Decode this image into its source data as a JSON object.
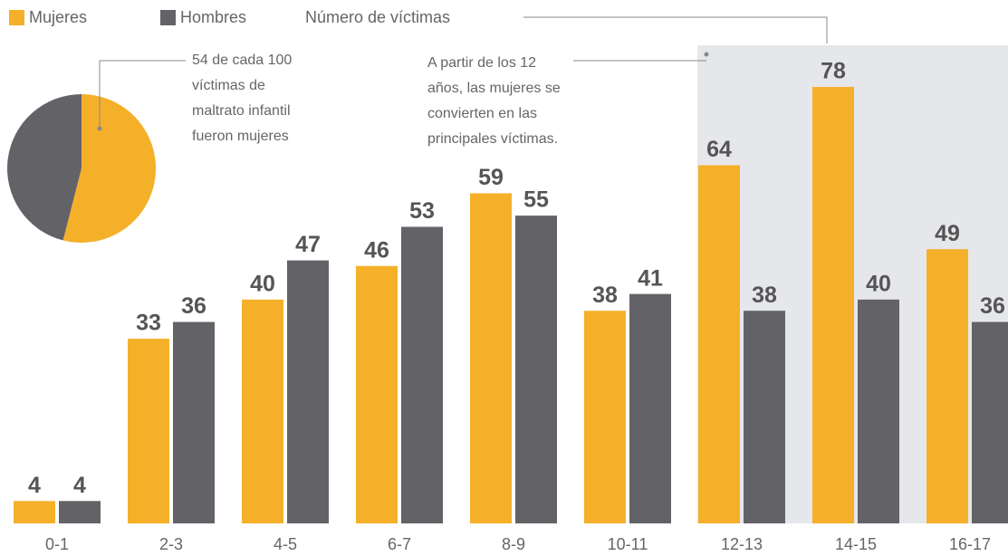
{
  "chart_data": [
    {
      "type": "bar",
      "categories": [
        "0-1",
        "2-3",
        "4-5",
        "6-7",
        "8-9",
        "10-11",
        "12-13",
        "14-15",
        "16-17"
      ],
      "series": [
        {
          "name": "Mujeres",
          "color": "#f5b02a",
          "values": [
            4,
            33,
            40,
            46,
            59,
            38,
            64,
            78,
            49
          ]
        },
        {
          "name": "Hombres",
          "color": "#636267",
          "values": [
            4,
            36,
            47,
            53,
            55,
            41,
            38,
            40,
            36
          ]
        }
      ],
      "legend_title": "Número de víctimas",
      "annotations": [
        [
          "54 de cada 100",
          "víctimas de",
          "maltrato infantil",
          "fueron mujeres"
        ],
        [
          "A partir de los 12",
          "años, las mujeres se",
          "convierten en las",
          "principales víctimas."
        ]
      ]
    },
    {
      "type": "pie",
      "values": [
        54,
        46
      ],
      "colors": [
        "#f5b02a",
        "#636267"
      ]
    }
  ]
}
